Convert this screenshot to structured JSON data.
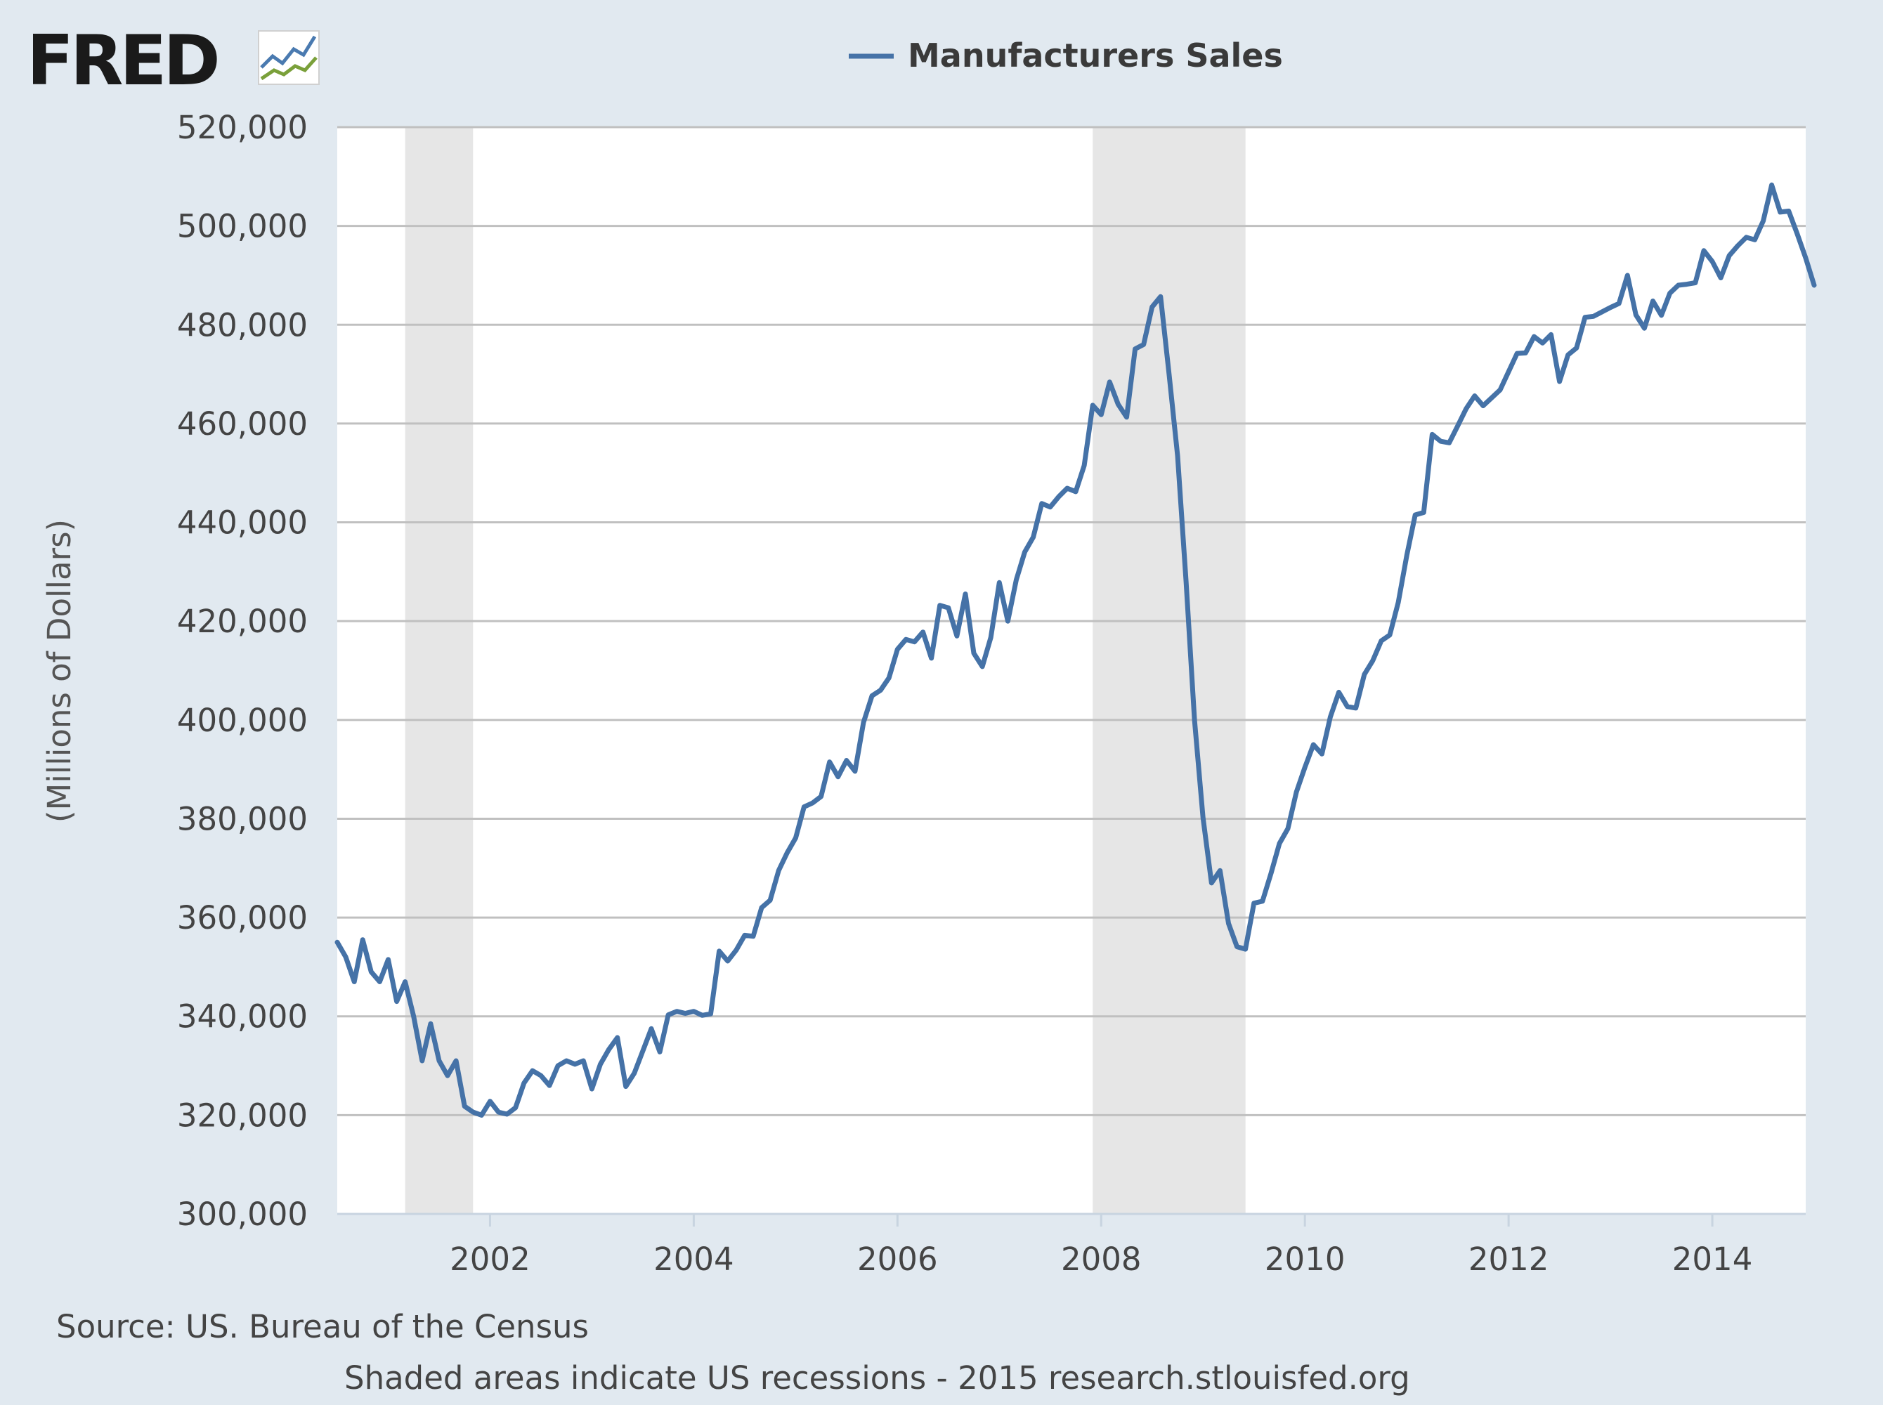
{
  "logo": {
    "text": "FRED"
  },
  "footer": {
    "source": "Source: US. Bureau of the Census",
    "note": "Shaded areas indicate US recessions - 2015 research.stlouisfed.org"
  },
  "colors": {
    "background": "#e1e9f0",
    "plot_background": "#ffffff",
    "series": "#4572a7",
    "recession": "#e6e6e6",
    "grid": "#c0c0c0"
  },
  "chart_data": {
    "type": "line",
    "title": "",
    "xlabel": "",
    "ylabel": "(Millions of Dollars)",
    "xlim": [
      2000.5,
      2014.917
    ],
    "ylim": [
      300000,
      520000
    ],
    "x_ticks": [
      2002,
      2004,
      2006,
      2008,
      2010,
      2012,
      2014
    ],
    "x_tick_labels": [
      "2002",
      "2004",
      "2006",
      "2008",
      "2010",
      "2012",
      "2014"
    ],
    "y_ticks": [
      300000,
      320000,
      340000,
      360000,
      380000,
      400000,
      420000,
      440000,
      460000,
      480000,
      500000,
      520000
    ],
    "y_tick_labels": [
      "300,000",
      "320,000",
      "340,000",
      "360,000",
      "380,000",
      "400,000",
      "420,000",
      "440,000",
      "460,000",
      "480,000",
      "500,000",
      "520,000"
    ],
    "grid": true,
    "legend": {
      "position": "top-center"
    },
    "recessions": [
      [
        2001.167,
        2001.833
      ],
      [
        2007.917,
        2009.417
      ]
    ],
    "series": [
      {
        "name": "Manufacturers Sales",
        "x_start": 2000.5,
        "x_step": 0.0833333,
        "values": [
          355000,
          352000,
          347000,
          355500,
          349000,
          347000,
          351500,
          343000,
          347000,
          340000,
          331000,
          338500,
          331000,
          328000,
          331000,
          321800,
          320600,
          320000,
          322800,
          320600,
          320200,
          321500,
          326500,
          329000,
          328000,
          326000,
          330000,
          331000,
          330300,
          331000,
          325300,
          330300,
          333300,
          335700,
          325800,
          328500,
          333000,
          337500,
          332800,
          340300,
          341000,
          340600,
          341000,
          340200,
          340500,
          353200,
          351200,
          353400,
          356400,
          356200,
          362000,
          363500,
          369500,
          373100,
          376100,
          382400,
          383200,
          384500,
          391500,
          388500,
          391800,
          389600,
          399500,
          404900,
          406000,
          408500,
          414300,
          416300,
          415800,
          417800,
          412500,
          423200,
          422700,
          417000,
          425500,
          413500,
          410800,
          416700,
          427800,
          420000,
          428400,
          434000,
          437000,
          443800,
          443100,
          445200,
          446900,
          446200,
          451500,
          463700,
          461800,
          468400,
          463900,
          461300,
          475100,
          476000,
          483600,
          485700,
          470000,
          453500,
          428000,
          400000,
          380200,
          367000,
          369500,
          358800,
          354100,
          353600,
          362900,
          363300,
          368900,
          375000,
          378000,
          385400,
          390400,
          395000,
          393100,
          400600,
          405600,
          402700,
          402400,
          409200,
          412000,
          416000,
          417200,
          423800,
          433300,
          441500,
          442000,
          457800,
          456400,
          456100,
          459500,
          463000,
          465600,
          463600,
          465200,
          466800,
          470500,
          474200,
          474300,
          477600,
          476300,
          478000,
          468500,
          473900,
          475300,
          481500,
          481700,
          482600,
          483500,
          484300,
          490000,
          482000,
          479300,
          484800,
          481900,
          486400,
          488000,
          488200,
          488500,
          495000,
          492800,
          489500,
          494000,
          496000,
          497700,
          497200,
          501000,
          508300,
          502800,
          503000,
          498400,
          493500,
          488000
        ]
      }
    ]
  }
}
